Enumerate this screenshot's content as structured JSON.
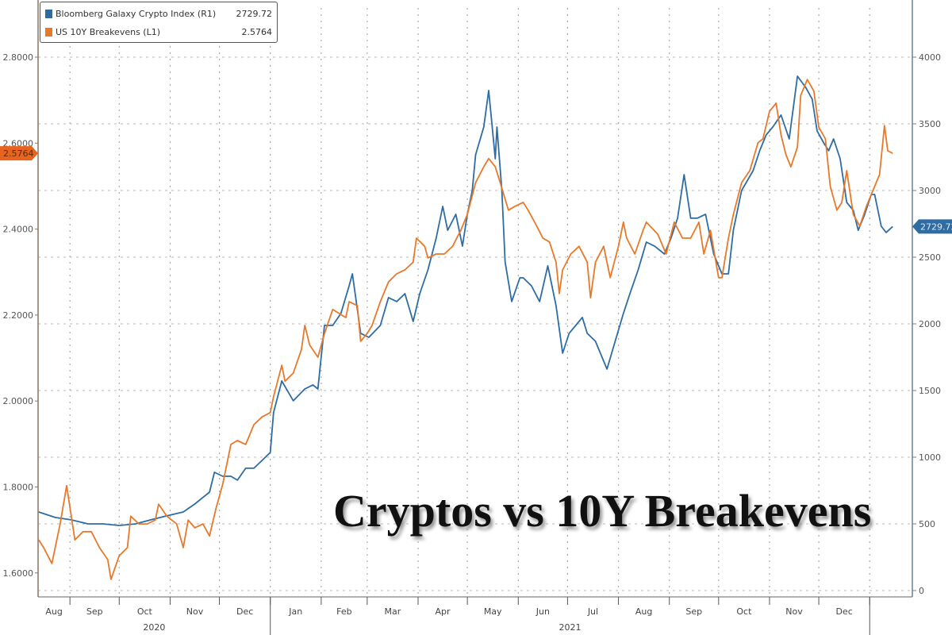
{
  "chart_data": {
    "type": "line",
    "title": "Cryptos vs 10Y Breakevens",
    "x_unit": "days since 2020-08-01",
    "x_range": [
      0,
      535
    ],
    "month_labels": [
      "Aug",
      "Sep",
      "Oct",
      "Nov",
      "Dec",
      "Jan",
      "Feb",
      "Mar",
      "Apr",
      "May",
      "Jun",
      "Jul",
      "Aug",
      "Sep",
      "Oct",
      "Nov",
      "Dec"
    ],
    "month_starts": [
      0,
      31,
      61,
      92,
      122,
      153,
      184,
      212,
      243,
      273,
      304,
      334,
      365,
      396,
      426,
      457,
      487,
      518
    ],
    "year_labels": [
      "2020",
      "2021"
    ],
    "left_axis": {
      "ticks": [
        "2.8000",
        "2.6000",
        "2.4000",
        "2.2000",
        "2.0000",
        "1.8000",
        "1.6000"
      ],
      "tick_values": [
        2.8,
        2.6,
        2.4,
        2.2,
        2.0,
        1.8,
        1.6
      ],
      "ylim": [
        1.57,
        2.8
      ]
    },
    "right_axis": {
      "ticks": [
        "4000",
        "3500",
        "3000",
        "2500",
        "2000",
        "1500",
        "1000",
        "500",
        "0"
      ],
      "tick_values": [
        4000,
        3500,
        3000,
        2500,
        2000,
        1500,
        1000,
        500,
        0
      ],
      "ylim": [
        0,
        4000
      ]
    },
    "grid": true,
    "legend_position": "top-left",
    "series": [
      {
        "name": "Bloomberg Galaxy Crypto Index (R1)",
        "last": "2729.72",
        "axis": "right",
        "color": "#2e6ca4",
        "points": [
          [
            12,
            589
          ],
          [
            22,
            548
          ],
          [
            32,
            530
          ],
          [
            42,
            500
          ],
          [
            51,
            500
          ],
          [
            61,
            488
          ],
          [
            71,
            500
          ],
          [
            80,
            530
          ],
          [
            90,
            560
          ],
          [
            100,
            589
          ],
          [
            107,
            649
          ],
          [
            116,
            738
          ],
          [
            119,
            887
          ],
          [
            124,
            857
          ],
          [
            129,
            857
          ],
          [
            133,
            828
          ],
          [
            138,
            917
          ],
          [
            143,
            917
          ],
          [
            148,
            976
          ],
          [
            153,
            1036
          ],
          [
            155,
            1334
          ],
          [
            160,
            1572
          ],
          [
            167,
            1423
          ],
          [
            174,
            1512
          ],
          [
            179,
            1542
          ],
          [
            182,
            1512
          ],
          [
            186,
            1988
          ],
          [
            191,
            1988
          ],
          [
            196,
            2078
          ],
          [
            201,
            2286
          ],
          [
            203,
            2375
          ],
          [
            208,
            1929
          ],
          [
            213,
            1899
          ],
          [
            220,
            1988
          ],
          [
            225,
            2197
          ],
          [
            230,
            2167
          ],
          [
            235,
            2226
          ],
          [
            240,
            2018
          ],
          [
            244,
            2226
          ],
          [
            249,
            2405
          ],
          [
            254,
            2643
          ],
          [
            258,
            2881
          ],
          [
            261,
            2702
          ],
          [
            266,
            2822
          ],
          [
            270,
            2583
          ],
          [
            273,
            2822
          ],
          [
            276,
            3000
          ],
          [
            278,
            3268
          ],
          [
            283,
            3476
          ],
          [
            286,
            3750
          ],
          [
            290,
            3238
          ],
          [
            291,
            3476
          ],
          [
            294,
            3000
          ],
          [
            296,
            2464
          ],
          [
            300,
            2167
          ],
          [
            305,
            2345
          ],
          [
            307,
            2345
          ],
          [
            312,
            2286
          ],
          [
            317,
            2167
          ],
          [
            322,
            2435
          ],
          [
            327,
            2137
          ],
          [
            331,
            1780
          ],
          [
            335,
            1929
          ],
          [
            339,
            1988
          ],
          [
            343,
            2048
          ],
          [
            346,
            1929
          ],
          [
            351,
            1869
          ],
          [
            358,
            1661
          ],
          [
            363,
            1869
          ],
          [
            368,
            2078
          ],
          [
            372,
            2226
          ],
          [
            377,
            2405
          ],
          [
            382,
            2613
          ],
          [
            387,
            2583
          ],
          [
            393,
            2524
          ],
          [
            397,
            2643
          ],
          [
            401,
            2792
          ],
          [
            405,
            3119
          ],
          [
            409,
            2792
          ],
          [
            413,
            2792
          ],
          [
            418,
            2822
          ],
          [
            423,
            2524
          ],
          [
            428,
            2375
          ],
          [
            432,
            2375
          ],
          [
            435,
            2702
          ],
          [
            440,
            3000
          ],
          [
            447,
            3149
          ],
          [
            451,
            3298
          ],
          [
            455,
            3417
          ],
          [
            459,
            3476
          ],
          [
            464,
            3566
          ],
          [
            469,
            3387
          ],
          [
            474,
            3857
          ],
          [
            479,
            3774
          ],
          [
            483,
            3685
          ],
          [
            486,
            3446
          ],
          [
            490,
            3357
          ],
          [
            493,
            3298
          ],
          [
            496,
            3387
          ],
          [
            500,
            3238
          ],
          [
            504,
            2911
          ],
          [
            508,
            2851
          ],
          [
            511,
            2702
          ],
          [
            515,
            2822
          ],
          [
            519,
            2970
          ],
          [
            521,
            2970
          ],
          [
            525,
            2732
          ],
          [
            528,
            2685
          ],
          [
            532,
            2729.72
          ]
        ]
      },
      {
        "name": "US 10Y Breakevens (L1)",
        "last": "2.5764",
        "axis": "left",
        "color": "#e8782a",
        "points": [
          [
            12,
            1.677
          ],
          [
            15,
            1.659
          ],
          [
            20,
            1.622
          ],
          [
            25,
            1.714
          ],
          [
            29,
            1.803
          ],
          [
            34,
            1.677
          ],
          [
            39,
            1.696
          ],
          [
            44,
            1.696
          ],
          [
            49,
            1.659
          ],
          [
            54,
            1.631
          ],
          [
            56,
            1.585
          ],
          [
            61,
            1.64
          ],
          [
            66,
            1.659
          ],
          [
            68,
            1.732
          ],
          [
            73,
            1.714
          ],
          [
            78,
            1.714
          ],
          [
            83,
            1.723
          ],
          [
            85,
            1.76
          ],
          [
            90,
            1.732
          ],
          [
            96,
            1.714
          ],
          [
            100,
            1.659
          ],
          [
            103,
            1.723
          ],
          [
            107,
            1.705
          ],
          [
            112,
            1.714
          ],
          [
            116,
            1.686
          ],
          [
            120,
            1.751
          ],
          [
            124,
            1.806
          ],
          [
            129,
            1.899
          ],
          [
            133,
            1.908
          ],
          [
            138,
            1.899
          ],
          [
            143,
            1.945
          ],
          [
            148,
            1.963
          ],
          [
            153,
            1.973
          ],
          [
            155,
            2.01
          ],
          [
            160,
            2.083
          ],
          [
            162,
            2.046
          ],
          [
            167,
            2.065
          ],
          [
            172,
            2.12
          ],
          [
            174,
            2.176
          ],
          [
            177,
            2.13
          ],
          [
            182,
            2.102
          ],
          [
            186,
            2.157
          ],
          [
            191,
            2.213
          ],
          [
            199,
            2.194
          ],
          [
            201,
            2.231
          ],
          [
            206,
            2.222
          ],
          [
            208,
            2.139
          ],
          [
            212,
            2.157
          ],
          [
            215,
            2.176
          ],
          [
            220,
            2.231
          ],
          [
            225,
            2.277
          ],
          [
            230,
            2.296
          ],
          [
            235,
            2.305
          ],
          [
            240,
            2.323
          ],
          [
            242,
            2.379
          ],
          [
            247,
            2.36
          ],
          [
            249,
            2.333
          ],
          [
            254,
            2.342
          ],
          [
            259,
            2.342
          ],
          [
            264,
            2.36
          ],
          [
            269,
            2.397
          ],
          [
            273,
            2.434
          ],
          [
            278,
            2.508
          ],
          [
            283,
            2.545
          ],
          [
            286,
            2.564
          ],
          [
            290,
            2.545
          ],
          [
            293,
            2.508
          ],
          [
            298,
            2.444
          ],
          [
            302,
            2.453
          ],
          [
            307,
            2.462
          ],
          [
            310,
            2.444
          ],
          [
            314,
            2.416
          ],
          [
            319,
            2.379
          ],
          [
            323,
            2.37
          ],
          [
            327,
            2.323
          ],
          [
            329,
            2.25
          ],
          [
            331,
            2.305
          ],
          [
            336,
            2.342
          ],
          [
            341,
            2.36
          ],
          [
            346,
            2.323
          ],
          [
            348,
            2.24
          ],
          [
            351,
            2.323
          ],
          [
            356,
            2.36
          ],
          [
            360,
            2.287
          ],
          [
            365,
            2.36
          ],
          [
            368,
            2.416
          ],
          [
            370,
            2.379
          ],
          [
            375,
            2.342
          ],
          [
            380,
            2.397
          ],
          [
            382,
            2.416
          ],
          [
            389,
            2.388
          ],
          [
            394,
            2.342
          ],
          [
            399,
            2.416
          ],
          [
            404,
            2.379
          ],
          [
            409,
            2.379
          ],
          [
            414,
            2.416
          ],
          [
            417,
            2.342
          ],
          [
            421,
            2.397
          ],
          [
            426,
            2.287
          ],
          [
            428,
            2.287
          ],
          [
            432,
            2.379
          ],
          [
            435,
            2.434
          ],
          [
            440,
            2.508
          ],
          [
            445,
            2.536
          ],
          [
            450,
            2.601
          ],
          [
            453,
            2.61
          ],
          [
            457,
            2.674
          ],
          [
            461,
            2.693
          ],
          [
            464,
            2.619
          ],
          [
            467,
            2.573
          ],
          [
            470,
            2.545
          ],
          [
            474,
            2.591
          ],
          [
            476,
            2.711
          ],
          [
            480,
            2.748
          ],
          [
            484,
            2.721
          ],
          [
            487,
            2.637
          ],
          [
            491,
            2.61
          ],
          [
            494,
            2.499
          ],
          [
            498,
            2.444
          ],
          [
            501,
            2.462
          ],
          [
            504,
            2.536
          ],
          [
            508,
            2.434
          ],
          [
            512,
            2.407
          ],
          [
            516,
            2.453
          ],
          [
            520,
            2.49
          ],
          [
            524,
            2.527
          ],
          [
            527,
            2.641
          ],
          [
            529,
            2.582
          ],
          [
            532,
            2.5764
          ]
        ]
      }
    ]
  }
}
